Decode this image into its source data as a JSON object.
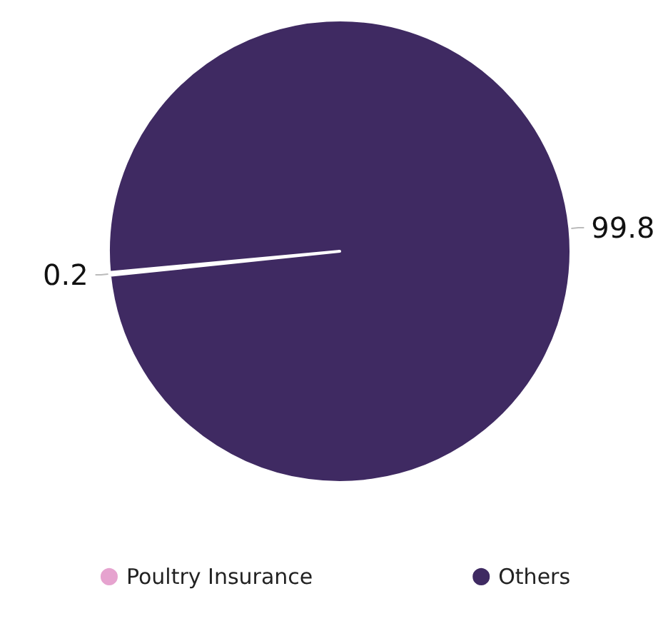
{
  "chart_data": {
    "type": "pie",
    "categories": [
      "Poultry Insurance",
      "Others"
    ],
    "values": [
      0.2,
      99.8
    ],
    "colors": [
      "#e6a3cf",
      "#3f2a62"
    ],
    "data_labels": true,
    "legend": "bottom"
  }
}
